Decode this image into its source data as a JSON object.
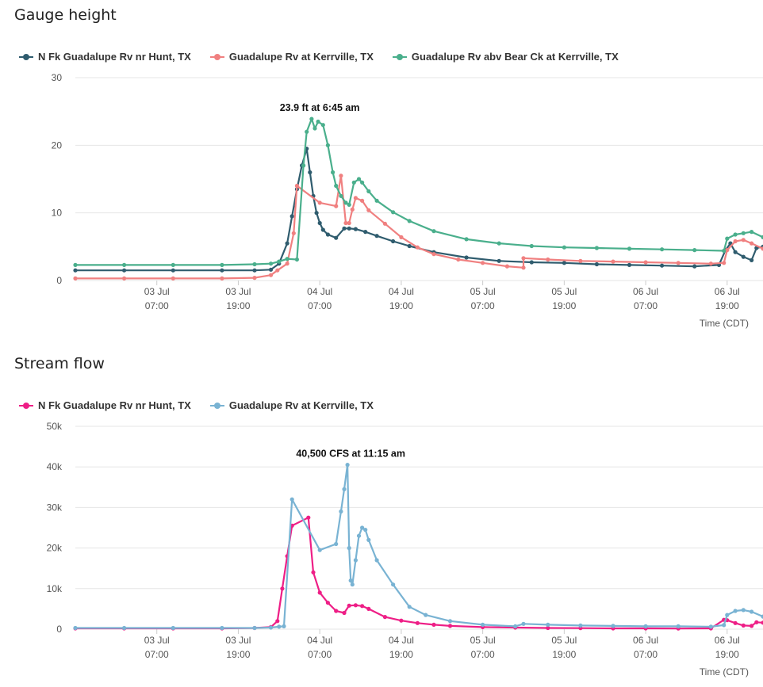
{
  "chart_data": [
    {
      "type": "line",
      "title": "Gauge height",
      "xlabel": "Time (CDT)",
      "ylabel": "",
      "ylim": [
        0,
        30
      ],
      "yticks": [
        "0",
        "10",
        "20",
        "30"
      ],
      "grid": true,
      "legend_position": "top-left",
      "x_ticks": [
        {
          "x": 0.5,
          "day": "03 Jul",
          "time": "07:00"
        },
        {
          "x": 1.0,
          "day": "03 Jul",
          "time": "19:00"
        },
        {
          "x": 1.5,
          "day": "04 Jul",
          "time": "07:00"
        },
        {
          "x": 2.0,
          "day": "04 Jul",
          "time": "19:00"
        },
        {
          "x": 2.5,
          "day": "05 Jul",
          "time": "07:00"
        },
        {
          "x": 3.0,
          "day": "05 Jul",
          "time": "19:00"
        },
        {
          "x": 3.5,
          "day": "06 Jul",
          "time": "07:00"
        },
        {
          "x": 4.0,
          "day": "06 Jul",
          "time": "19:00"
        }
      ],
      "xlim": [
        0,
        4.22
      ],
      "annotation": {
        "text": "23.9 ft at 6:45 am",
        "x": 1.49,
        "y": 23.9
      },
      "series": [
        {
          "name": "N Fk Guadalupe Rv nr Hunt, TX",
          "color": "#2f5c6e",
          "x": [
            0,
            0.3,
            0.6,
            0.9,
            1.1,
            1.2,
            1.25,
            1.3,
            1.33,
            1.36,
            1.39,
            1.42,
            1.44,
            1.46,
            1.48,
            1.5,
            1.52,
            1.55,
            1.6,
            1.65,
            1.68,
            1.72,
            1.78,
            1.85,
            1.95,
            2.05,
            2.2,
            2.4,
            2.6,
            2.8,
            3.0,
            3.2,
            3.4,
            3.6,
            3.8,
            3.95,
            3.99,
            4.02,
            4.05,
            4.1,
            4.15,
            4.18,
            4.22
          ],
          "y": [
            1.5,
            1.5,
            1.5,
            1.5,
            1.5,
            1.6,
            2.5,
            5.5,
            9.5,
            13.5,
            17,
            19.5,
            16,
            12.5,
            10,
            8.5,
            7.5,
            6.8,
            6.3,
            7.7,
            7.7,
            7.6,
            7.2,
            6.6,
            5.8,
            5.1,
            4.2,
            3.4,
            2.9,
            2.7,
            2.6,
            2.4,
            2.3,
            2.2,
            2.1,
            2.3,
            4.5,
            5.5,
            4.2,
            3.5,
            3.0,
            4.8,
            5.0
          ]
        },
        {
          "name": "Guadalupe Rv at Kerrville, TX",
          "color": "#f08080",
          "x": [
            0,
            0.3,
            0.6,
            0.9,
            1.1,
            1.2,
            1.24,
            1.3,
            1.34,
            1.36,
            1.5,
            1.6,
            1.63,
            1.66,
            1.68,
            1.7,
            1.72,
            1.76,
            1.8,
            1.9,
            2.0,
            2.1,
            2.2,
            2.35,
            2.5,
            2.65,
            2.75,
            2.75,
            2.9,
            3.1,
            3.3,
            3.5,
            3.7,
            3.9,
            3.98,
            4.0,
            4.05,
            4.1,
            4.15,
            4.22
          ],
          "y": [
            0.3,
            0.3,
            0.3,
            0.3,
            0.4,
            0.8,
            1.5,
            2.5,
            7,
            14,
            11.5,
            11.0,
            15.5,
            8.5,
            8.5,
            10.5,
            12.2,
            11.8,
            10.4,
            8.4,
            6.4,
            4.9,
            3.9,
            3.1,
            2.6,
            2.1,
            1.9,
            3.3,
            3.1,
            2.9,
            2.8,
            2.7,
            2.6,
            2.5,
            2.6,
            4.5,
            5.8,
            6.0,
            5.5,
            4.7
          ]
        },
        {
          "name": "Guadalupe Rv abv Bear Ck at Kerrville, TX",
          "color": "#4aaf8c",
          "x": [
            0,
            0.3,
            0.6,
            0.9,
            1.1,
            1.2,
            1.25,
            1.3,
            1.36,
            1.4,
            1.42,
            1.45,
            1.47,
            1.49,
            1.52,
            1.55,
            1.58,
            1.6,
            1.63,
            1.66,
            1.68,
            1.71,
            1.74,
            1.76,
            1.8,
            1.85,
            1.95,
            2.05,
            2.2,
            2.4,
            2.6,
            2.8,
            3.0,
            3.2,
            3.4,
            3.6,
            3.8,
            3.98,
            4.0,
            4.05,
            4.1,
            4.15,
            4.22
          ],
          "y": [
            2.3,
            2.3,
            2.3,
            2.3,
            2.4,
            2.5,
            2.8,
            3.2,
            3.1,
            17,
            22,
            23.9,
            22.5,
            23.5,
            23,
            20,
            16,
            14,
            12.5,
            11.5,
            11.2,
            14.5,
            15,
            14.5,
            13.2,
            11.8,
            10.1,
            8.8,
            7.3,
            6.1,
            5.5,
            5.1,
            4.9,
            4.8,
            4.7,
            4.6,
            4.5,
            4.4,
            6.2,
            6.8,
            7.0,
            7.2,
            6.4
          ]
        }
      ]
    },
    {
      "type": "line",
      "title": "Stream flow",
      "xlabel": "Time (CDT)",
      "ylabel": "",
      "ylim": [
        0,
        50000
      ],
      "yticks": [
        "0",
        "10k",
        "20k",
        "30k",
        "40k",
        "50k"
      ],
      "grid": true,
      "legend_position": "top-left",
      "x_ticks": [
        {
          "x": 0.5,
          "day": "03 Jul",
          "time": "07:00"
        },
        {
          "x": 1.0,
          "day": "03 Jul",
          "time": "19:00"
        },
        {
          "x": 1.5,
          "day": "04 Jul",
          "time": "07:00"
        },
        {
          "x": 2.0,
          "day": "04 Jul",
          "time": "19:00"
        },
        {
          "x": 2.5,
          "day": "05 Jul",
          "time": "07:00"
        },
        {
          "x": 3.0,
          "day": "05 Jul",
          "time": "19:00"
        },
        {
          "x": 3.5,
          "day": "06 Jul",
          "time": "07:00"
        },
        {
          "x": 4.0,
          "day": "06 Jul",
          "time": "19:00"
        }
      ],
      "xlim": [
        0,
        4.22
      ],
      "annotation": {
        "text": "40,500 CFS at 11:15 am",
        "x": 1.68,
        "y": 40500
      },
      "series": [
        {
          "name": "N Fk Guadalupe Rv nr Hunt, TX",
          "color": "#ee1e86",
          "x": [
            0,
            0.3,
            0.6,
            0.9,
            1.1,
            1.2,
            1.24,
            1.27,
            1.3,
            1.33,
            1.43,
            1.46,
            1.5,
            1.55,
            1.6,
            1.65,
            1.68,
            1.72,
            1.76,
            1.8,
            1.9,
            2.0,
            2.1,
            2.2,
            2.3,
            2.5,
            2.7,
            2.9,
            3.1,
            3.3,
            3.5,
            3.7,
            3.9,
            3.98,
            4.0,
            4.05,
            4.1,
            4.15,
            4.18,
            4.22
          ],
          "y": [
            200,
            200,
            200,
            200,
            300,
            500,
            2000,
            10000,
            18000,
            25500,
            27500,
            14000,
            9000,
            6500,
            4500,
            4000,
            5800,
            5900,
            5700,
            5000,
            3000,
            2100,
            1500,
            1100,
            800,
            500,
            400,
            300,
            250,
            200,
            200,
            150,
            200,
            2300,
            2200,
            1500,
            900,
            800,
            1700,
            1600
          ]
        },
        {
          "name": "Guadalupe Rv at Kerrville, TX",
          "color": "#79b3d3",
          "x": [
            0,
            0.3,
            0.6,
            0.9,
            1.1,
            1.2,
            1.25,
            1.28,
            1.33,
            1.5,
            1.6,
            1.63,
            1.65,
            1.67,
            1.68,
            1.69,
            1.7,
            1.72,
            1.74,
            1.76,
            1.78,
            1.8,
            1.85,
            1.95,
            2.05,
            2.15,
            2.3,
            2.5,
            2.7,
            2.75,
            2.9,
            3.1,
            3.3,
            3.5,
            3.7,
            3.9,
            3.98,
            4.0,
            4.05,
            4.1,
            4.15,
            4.22
          ],
          "y": [
            300,
            300,
            300,
            300,
            300,
            400,
            600,
            700,
            32000,
            19500,
            21000,
            29000,
            34500,
            40500,
            20000,
            12000,
            11000,
            17000,
            23000,
            25000,
            24500,
            22000,
            17000,
            11000,
            5500,
            3500,
            2000,
            1100,
            700,
            1300,
            1100,
            900,
            800,
            700,
            700,
            600,
            1000,
            3500,
            4500,
            4700,
            4300,
            3100
          ]
        }
      ]
    }
  ]
}
